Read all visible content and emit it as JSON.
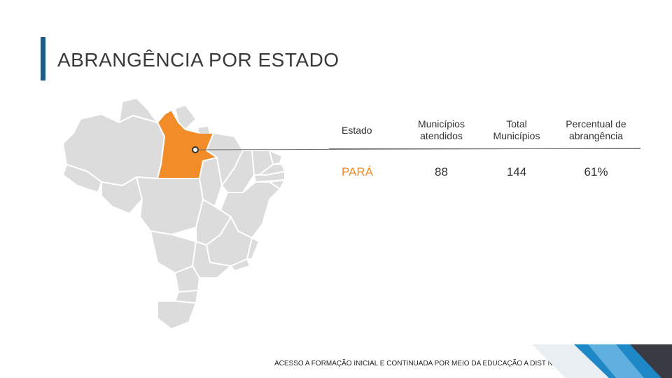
{
  "title": "ABRANGÊNCIA POR ESTADO",
  "colors": {
    "accent_bar": "#1f5a87",
    "highlight_state": "#f28c28",
    "map_states": "#dcdcdc",
    "corner_blue": "#1e88c7",
    "corner_dark": "#3a3a42"
  },
  "table": {
    "headers": [
      "Estado",
      "Municípios atendidos",
      "Total Municípios",
      "Percentual de abrangência"
    ],
    "rows": [
      {
        "estado": "PARÁ",
        "municipios_atendidos": "88",
        "total_municipios": "144",
        "percentual": "61%"
      }
    ]
  },
  "footer": "ACESSO A FORMAÇÃO INICIAL E CONTINUADA POR MEIO DA EDUCAÇÃO A DIST NCIA"
}
